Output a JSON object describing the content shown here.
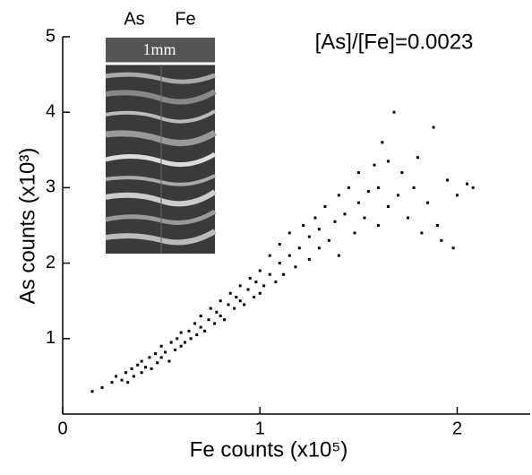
{
  "chart_data": {
    "type": "scatter",
    "annotation": "[As]/[Fe]=0.0023",
    "inset_labels": [
      "As",
      "Fe",
      "1mm"
    ],
    "xlabel": "Fe counts (x10⁵)",
    "ylabel": "As counts (x10³)",
    "xlim": [
      0,
      2.37
    ],
    "ylim": [
      0,
      5
    ],
    "xticks": [
      0,
      1,
      2
    ],
    "yticks": [
      1,
      2,
      3,
      4,
      5
    ],
    "color": "#000000",
    "x": [
      0.15,
      0.2,
      0.25,
      0.27,
      0.3,
      0.32,
      0.33,
      0.35,
      0.36,
      0.38,
      0.4,
      0.4,
      0.42,
      0.44,
      0.45,
      0.47,
      0.48,
      0.5,
      0.5,
      0.52,
      0.54,
      0.55,
      0.57,
      0.58,
      0.6,
      0.6,
      0.62,
      0.64,
      0.65,
      0.67,
      0.68,
      0.7,
      0.7,
      0.72,
      0.74,
      0.75,
      0.77,
      0.78,
      0.8,
      0.8,
      0.82,
      0.84,
      0.85,
      0.87,
      0.88,
      0.9,
      0.9,
      0.92,
      0.94,
      0.95,
      0.97,
      0.98,
      1.0,
      1.0,
      1.02,
      1.05,
      1.05,
      1.08,
      1.1,
      1.1,
      1.12,
      1.15,
      1.15,
      1.18,
      1.2,
      1.22,
      1.25,
      1.25,
      1.28,
      1.3,
      1.3,
      1.33,
      1.35,
      1.38,
      1.4,
      1.4,
      1.43,
      1.45,
      1.48,
      1.5,
      1.5,
      1.53,
      1.55,
      1.58,
      1.6,
      1.6,
      1.62,
      1.65,
      1.65,
      1.68,
      1.7,
      1.72,
      1.75,
      1.78,
      1.8,
      1.82,
      1.85,
      1.88,
      1.9,
      1.92,
      1.95,
      2.0,
      2.05,
      2.08,
      1.98
    ],
    "y": [
      0.3,
      0.35,
      0.42,
      0.5,
      0.45,
      0.55,
      0.42,
      0.6,
      0.5,
      0.65,
      0.55,
      0.7,
      0.62,
      0.75,
      0.6,
      0.8,
      0.68,
      0.75,
      0.9,
      0.82,
      0.7,
      0.95,
      0.85,
      1.0,
      0.9,
      1.08,
      0.95,
      1.1,
      1.0,
      1.2,
      1.05,
      1.15,
      1.3,
      1.1,
      1.25,
      1.4,
      1.2,
      1.35,
      1.3,
      1.5,
      1.25,
      1.45,
      1.6,
      1.4,
      1.55,
      1.5,
      1.7,
      1.45,
      1.65,
      1.8,
      1.55,
      1.75,
      1.6,
      1.9,
      1.7,
      1.85,
      2.1,
      1.75,
      2.0,
      2.25,
      1.85,
      2.1,
      2.4,
      1.95,
      2.2,
      2.5,
      2.05,
      2.35,
      2.6,
      2.2,
      2.45,
      2.75,
      2.3,
      2.55,
      2.9,
      2.1,
      2.65,
      3.0,
      2.4,
      2.8,
      3.2,
      2.6,
      2.95,
      3.3,
      2.5,
      3.0,
      3.6,
      2.75,
      3.35,
      4.0,
      2.9,
      3.2,
      2.6,
      3.0,
      3.4,
      2.4,
      2.8,
      3.8,
      2.5,
      2.3,
      3.1,
      2.9,
      3.05,
      3.0,
      2.2
    ]
  }
}
